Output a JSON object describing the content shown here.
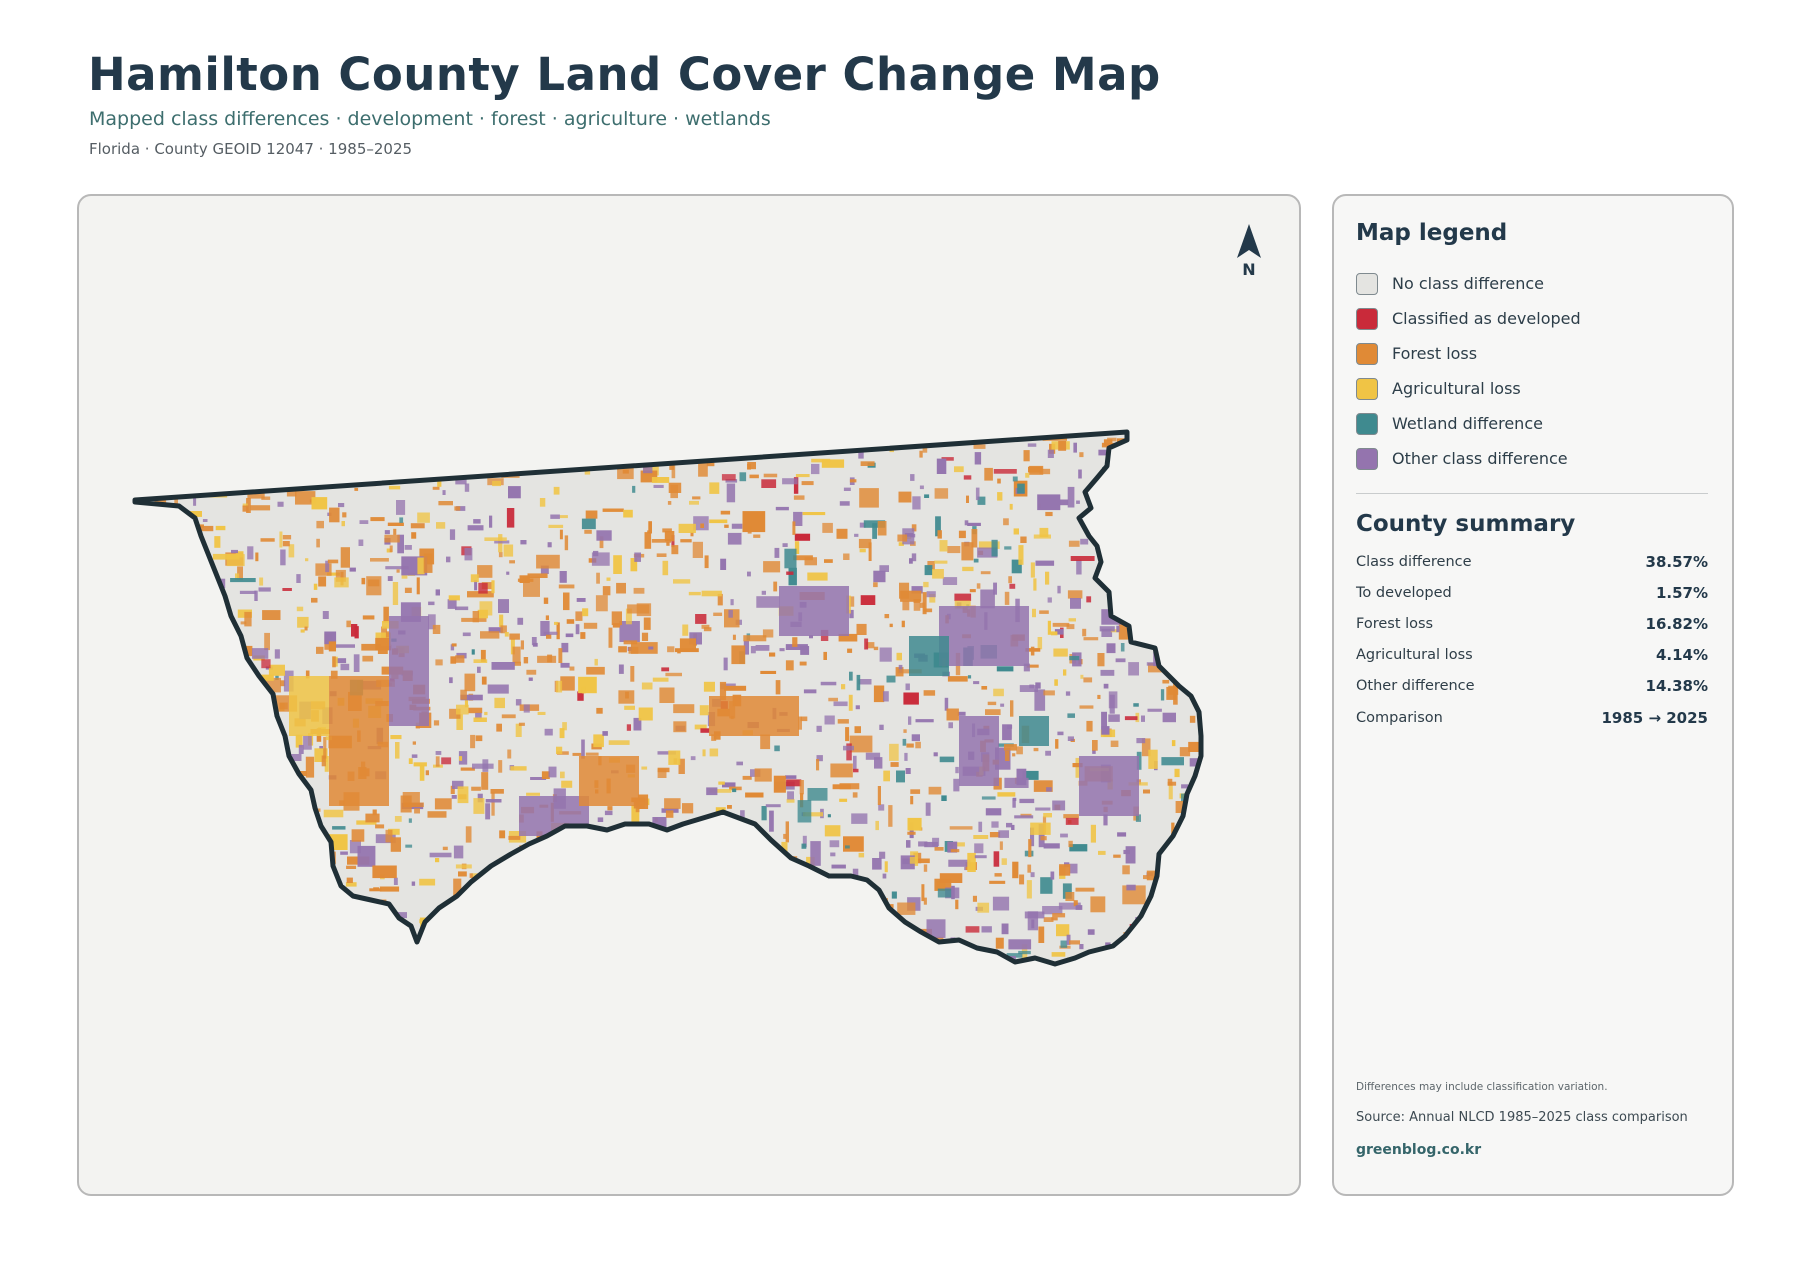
{
  "header": {
    "title": "Hamilton County Land Cover Change Map",
    "subtitle": "Mapped class differences · development · forest · agriculture · wetlands",
    "meta": "Florida · County GEOID 12047 · 1985–2025"
  },
  "map": {
    "north_label": "N"
  },
  "legend": {
    "heading": "Map legend",
    "items": [
      {
        "label": "No class difference",
        "color": "#e4e4e1"
      },
      {
        "label": "Classified as developed",
        "color": "#c92a3a"
      },
      {
        "label": "Forest loss",
        "color": "#e08a36"
      },
      {
        "label": "Agricultural loss",
        "color": "#f0c445"
      },
      {
        "label": "Wetland difference",
        "color": "#3f8a8f"
      },
      {
        "label": "Other class difference",
        "color": "#9474ae"
      }
    ]
  },
  "summary": {
    "heading": "County summary",
    "rows": [
      {
        "label": "Class difference",
        "value": "38.57%"
      },
      {
        "label": "To developed",
        "value": "1.57%"
      },
      {
        "label": "Forest loss",
        "value": "16.82%"
      },
      {
        "label": "Agricultural loss",
        "value": "4.14%"
      },
      {
        "label": "Other difference",
        "value": "14.38%"
      },
      {
        "label": "Comparison",
        "value": "1985 → 2025"
      }
    ]
  },
  "footer": {
    "note": "Differences may include classification variation.",
    "source": "Source: Annual NLCD 1985–2025 class comparison",
    "brand": "greenblog.co.kr"
  }
}
